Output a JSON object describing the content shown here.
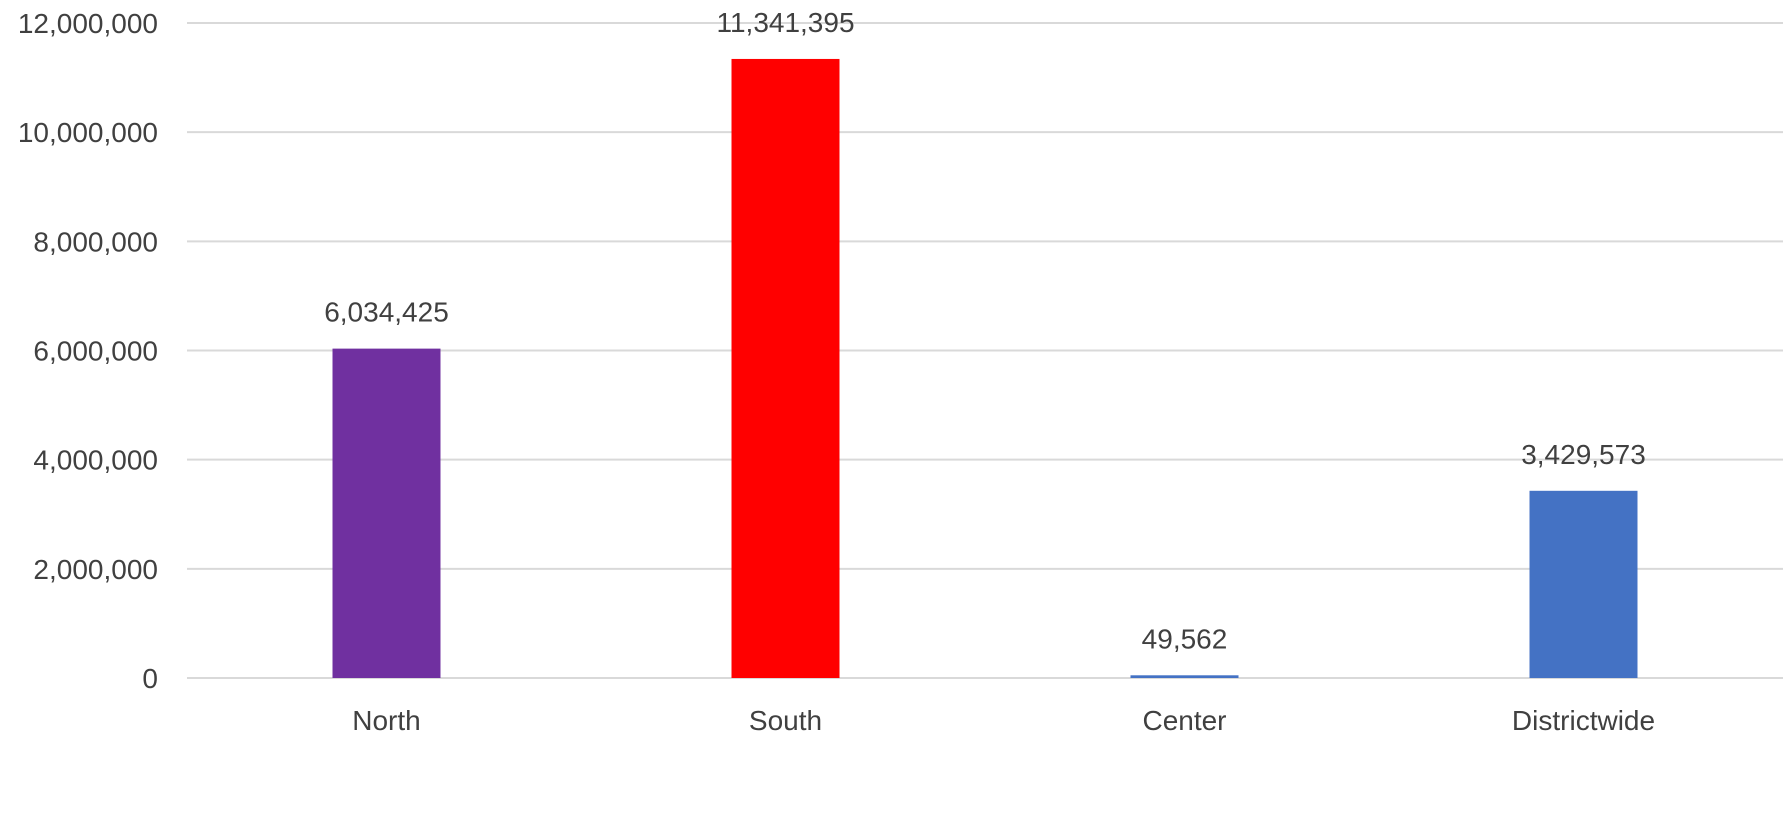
{
  "chart_data": {
    "type": "bar",
    "title": "",
    "xlabel": "",
    "ylabel": "",
    "categories": [
      "North",
      "South",
      "Center",
      "Districtwide"
    ],
    "values": [
      6034425,
      11341395,
      49562,
      3429573
    ],
    "data_labels": [
      "6,034,425",
      "11,341,395",
      "49,562",
      "3,429,573"
    ],
    "bar_colors": [
      "#7030A0",
      "#FF0000",
      "#4472C4",
      "#4472C4"
    ],
    "ylim": [
      0,
      12000000
    ],
    "y_ticks": [
      0,
      2000000,
      4000000,
      6000000,
      8000000,
      10000000,
      12000000
    ],
    "y_tick_labels": [
      "0",
      "2,000,000",
      "4,000,000",
      "6,000,000",
      "8,000,000",
      "10,000,000",
      "12,000,000"
    ],
    "grid": true,
    "legend": "none",
    "gridline_color": "#d9d9d9",
    "text_color": "#404040"
  }
}
